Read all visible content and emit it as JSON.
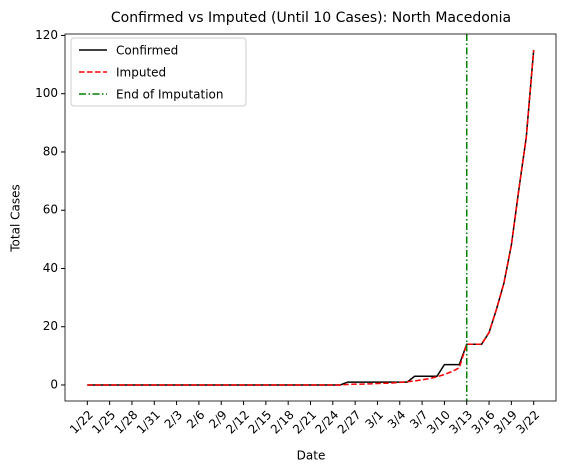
{
  "chart_data": {
    "type": "line",
    "title": "Confirmed vs Imputed (Until 10 Cases): North Macedonia",
    "xlabel": "Date",
    "ylabel": "Total Cases",
    "categories": [
      "1/22",
      null,
      null,
      "1/25",
      null,
      null,
      "1/28",
      null,
      null,
      "1/31",
      null,
      null,
      "2/3",
      null,
      null,
      "2/6",
      null,
      null,
      "2/9",
      null,
      null,
      "2/12",
      null,
      null,
      "2/15",
      null,
      null,
      "2/18",
      null,
      null,
      "2/21",
      null,
      null,
      "2/24",
      null,
      null,
      "2/27",
      null,
      null,
      "3/1",
      null,
      null,
      "3/4",
      null,
      null,
      "3/7",
      null,
      null,
      "3/10",
      null,
      null,
      "3/13",
      null,
      null,
      "3/16",
      null,
      null,
      "3/19",
      null,
      null,
      "3/22"
    ],
    "series": [
      {
        "name": "Confirmed",
        "color": "#000000",
        "dash": "solid",
        "values": [
          0,
          0,
          0,
          0,
          0,
          0,
          0,
          0,
          0,
          0,
          0,
          0,
          0,
          0,
          0,
          0,
          0,
          0,
          0,
          0,
          0,
          0,
          0,
          0,
          0,
          0,
          0,
          0,
          0,
          0,
          0,
          0,
          0,
          0,
          0,
          1,
          1,
          1,
          1,
          1,
          1,
          1,
          1,
          1,
          3,
          3,
          3,
          3,
          7,
          7,
          7,
          14,
          14,
          14,
          18,
          26,
          35,
          48,
          67,
          85,
          115
        ]
      },
      {
        "name": "Imputed",
        "color": "#ff0000",
        "dash": "dashed",
        "values": [
          0,
          0,
          0,
          0,
          0,
          0,
          0,
          0,
          0,
          0,
          0,
          0,
          0,
          0,
          0,
          0,
          0,
          0,
          0,
          0,
          0,
          0,
          0,
          0,
          0,
          0,
          0,
          0,
          0,
          0,
          0,
          0,
          0,
          0,
          0,
          0.2,
          0.3,
          0.3,
          0.4,
          0.5,
          0.6,
          0.7,
          0.9,
          1.1,
          1.4,
          1.8,
          2.2,
          2.8,
          3.6,
          4.6,
          5.9,
          14,
          14,
          14,
          18,
          26,
          35,
          48,
          67,
          85,
          115
        ]
      }
    ],
    "vline": {
      "name": "End of Imputation",
      "x": "3/13",
      "color": "#008000"
    },
    "ylim": [
      -5.5,
      120.5
    ],
    "yticks": [
      0,
      20,
      40,
      60,
      80,
      100,
      120
    ],
    "grid": false,
    "legend": "upper-left"
  }
}
